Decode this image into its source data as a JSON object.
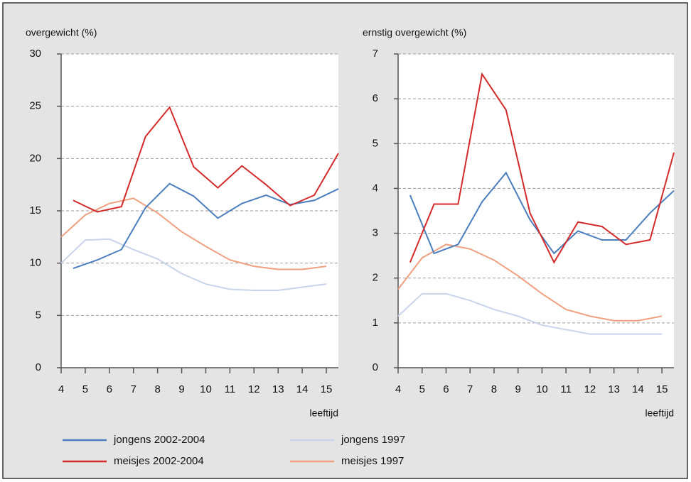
{
  "chart_data": [
    {
      "type": "line",
      "y_label": "overgewicht (%)",
      "x_label": "leeftijd",
      "xlim": [
        4,
        15.5
      ],
      "xticks": [
        4,
        5,
        6,
        7,
        8,
        9,
        10,
        11,
        12,
        13,
        14,
        15
      ],
      "ylim": [
        0,
        30
      ],
      "yticks": [
        0,
        5,
        10,
        15,
        20,
        25,
        30
      ],
      "grid": true,
      "series": [
        {
          "name": "jongens 2002-2004",
          "color": "#4a7ebf",
          "x": [
            4.5,
            5.5,
            6.5,
            7.5,
            8.5,
            9.5,
            10.5,
            11.5,
            12.5,
            13.5,
            14.5,
            15.5
          ],
          "values": [
            9.5,
            10.3,
            11.3,
            15.3,
            17.6,
            16.4,
            14.3,
            15.7,
            16.5,
            15.6,
            16.0,
            17.1
          ]
        },
        {
          "name": "meisjes 2002-2004",
          "color": "#d42a2a",
          "x": [
            4.5,
            5.5,
            6.5,
            7.5,
            8.5,
            9.5,
            10.5,
            11.5,
            12.5,
            13.5,
            14.5,
            15.5
          ],
          "values": [
            16.0,
            14.9,
            15.4,
            22.1,
            24.9,
            19.2,
            17.2,
            19.3,
            17.5,
            15.5,
            16.5,
            20.5
          ]
        },
        {
          "name": "jongens 1997",
          "color": "#c7d4ea",
          "x": [
            4,
            5,
            6,
            7,
            8,
            9,
            10,
            11,
            12,
            13,
            14,
            15
          ],
          "values": [
            10.0,
            12.2,
            12.3,
            11.3,
            10.4,
            9.0,
            8.0,
            7.5,
            7.4,
            7.4,
            7.7,
            8.0
          ]
        },
        {
          "name": "meisjes 1997",
          "color": "#f0a080",
          "x": [
            4,
            5,
            6,
            7,
            8,
            9,
            10,
            11,
            12,
            13,
            14,
            15
          ],
          "values": [
            12.5,
            14.6,
            15.7,
            16.2,
            14.8,
            13.0,
            11.6,
            10.3,
            9.7,
            9.4,
            9.4,
            9.7
          ]
        }
      ]
    },
    {
      "type": "line",
      "y_label": "ernstig overgewicht (%)",
      "x_label": "leeftijd",
      "xlim": [
        4,
        15.5
      ],
      "xticks": [
        4,
        5,
        6,
        7,
        8,
        9,
        10,
        11,
        12,
        13,
        14,
        15
      ],
      "ylim": [
        0,
        7
      ],
      "yticks": [
        0,
        1,
        2,
        3,
        4,
        5,
        6,
        7
      ],
      "grid": true,
      "series": [
        {
          "name": "jongens 2002-2004",
          "color": "#4a7ebf",
          "x": [
            4.5,
            5.5,
            6.5,
            7.5,
            8.5,
            9.5,
            10.5,
            11.5,
            12.5,
            13.5,
            14.5,
            15.5
          ],
          "values": [
            3.85,
            2.55,
            2.75,
            3.7,
            4.35,
            3.3,
            2.55,
            3.05,
            2.85,
            2.85,
            3.45,
            3.95
          ]
        },
        {
          "name": "meisjes 2002-2004",
          "color": "#d42a2a",
          "x": [
            4.5,
            5.5,
            6.5,
            7.5,
            8.5,
            9.5,
            10.5,
            11.5,
            12.5,
            13.5,
            14.5,
            15.5
          ],
          "values": [
            2.35,
            3.65,
            3.65,
            6.55,
            5.75,
            3.45,
            2.35,
            3.25,
            3.15,
            2.75,
            2.85,
            4.8
          ]
        },
        {
          "name": "jongens 1997",
          "color": "#c7d4ea",
          "x": [
            4,
            5,
            6,
            7,
            8,
            9,
            10,
            11,
            12,
            13,
            14,
            15
          ],
          "values": [
            1.15,
            1.65,
            1.65,
            1.5,
            1.3,
            1.15,
            0.95,
            0.85,
            0.75,
            0.75,
            0.75,
            0.75
          ]
        },
        {
          "name": "meisjes 1997",
          "color": "#f0a080",
          "x": [
            4,
            5,
            6,
            7,
            8,
            9,
            10,
            11,
            12,
            13,
            14,
            15
          ],
          "values": [
            1.75,
            2.45,
            2.75,
            2.65,
            2.4,
            2.05,
            1.65,
            1.3,
            1.15,
            1.05,
            1.05,
            1.15
          ]
        }
      ]
    }
  ]
}
